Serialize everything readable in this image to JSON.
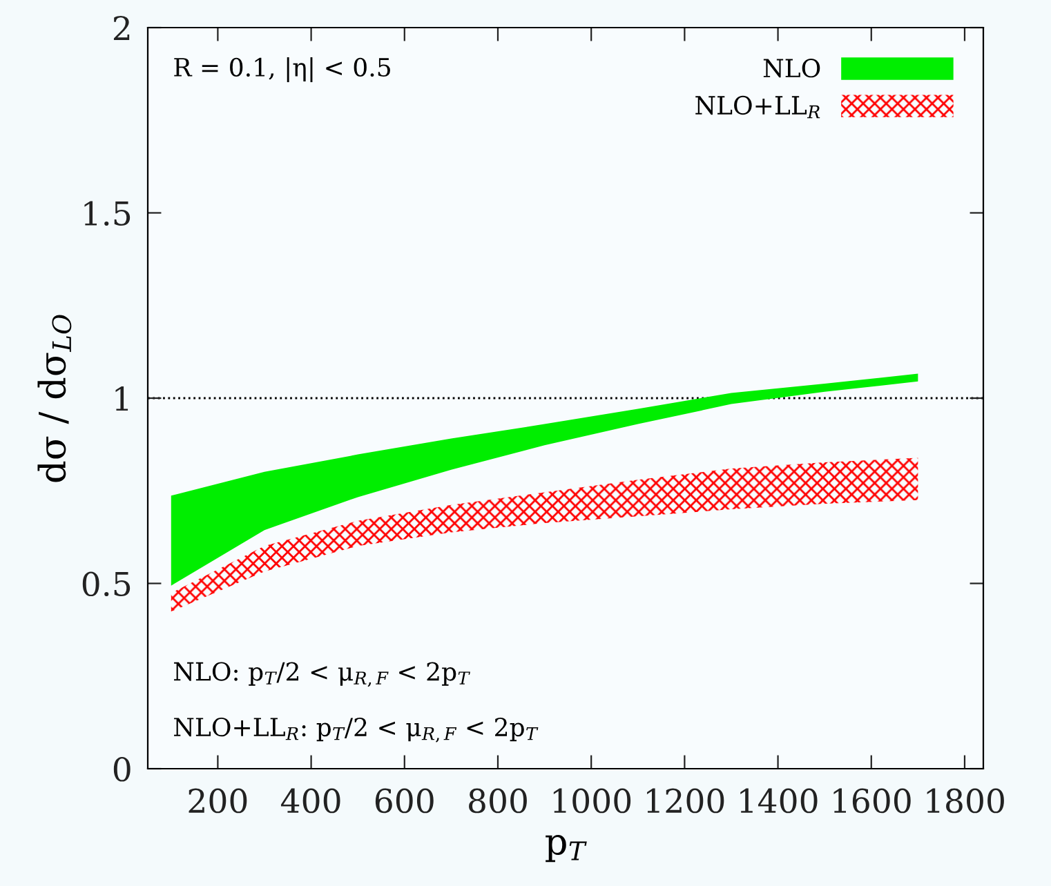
{
  "chart_data": {
    "type": "area",
    "xlabel": "p$_{T}$",
    "ylabel": "dσ / dσ$_{LO}$",
    "x": [
      100,
      300,
      500,
      700,
      900,
      1100,
      1300,
      1500,
      1700
    ],
    "series": [
      {
        "name": "NLO",
        "color": "#00ee00",
        "values": [
          null,
          null,
          null,
          null,
          null,
          null,
          null,
          null,
          null
        ],
        "lower": [
          0.494,
          0.644,
          0.733,
          0.807,
          0.873,
          0.93,
          0.984,
          1.017,
          1.045
        ],
        "upper": [
          0.737,
          0.801,
          0.848,
          0.891,
          0.93,
          0.971,
          1.014,
          1.039,
          1.066
        ]
      },
      {
        "name": "NLO+LL$_{R}$",
        "color": "#ff0000",
        "values": [
          null,
          null,
          null,
          null,
          null,
          null,
          null,
          null,
          null
        ],
        "lower": [
          0.424,
          0.532,
          0.601,
          0.638,
          0.663,
          0.681,
          0.7,
          0.715,
          0.725
        ],
        "upper": [
          0.474,
          0.601,
          0.669,
          0.712,
          0.746,
          0.78,
          0.81,
          0.827,
          0.839
        ]
      }
    ],
    "xlim": [
      50,
      1840
    ],
    "ylim": [
      0,
      2
    ],
    "xticks": [
      200,
      400,
      600,
      800,
      1000,
      1200,
      1400,
      1600,
      1800
    ],
    "yticks": [
      0,
      0.5,
      1,
      1.5,
      2
    ],
    "ref_lines": [
      {
        "axis": "y",
        "value": 1,
        "label": null,
        "color": "#000000",
        "line_style": "dotted"
      }
    ],
    "annotations": [
      "R = 0.1, |η| < 0.5",
      "NLO: p$_{T}$/2 < μ$_{R,F}$ < 2p$_{T}$",
      "NLO+LL$_{R}$: p$_{T}$/2 < μ$_{R,F}$ < 2p$_{T}$"
    ],
    "legend": "top right",
    "grid": false
  }
}
